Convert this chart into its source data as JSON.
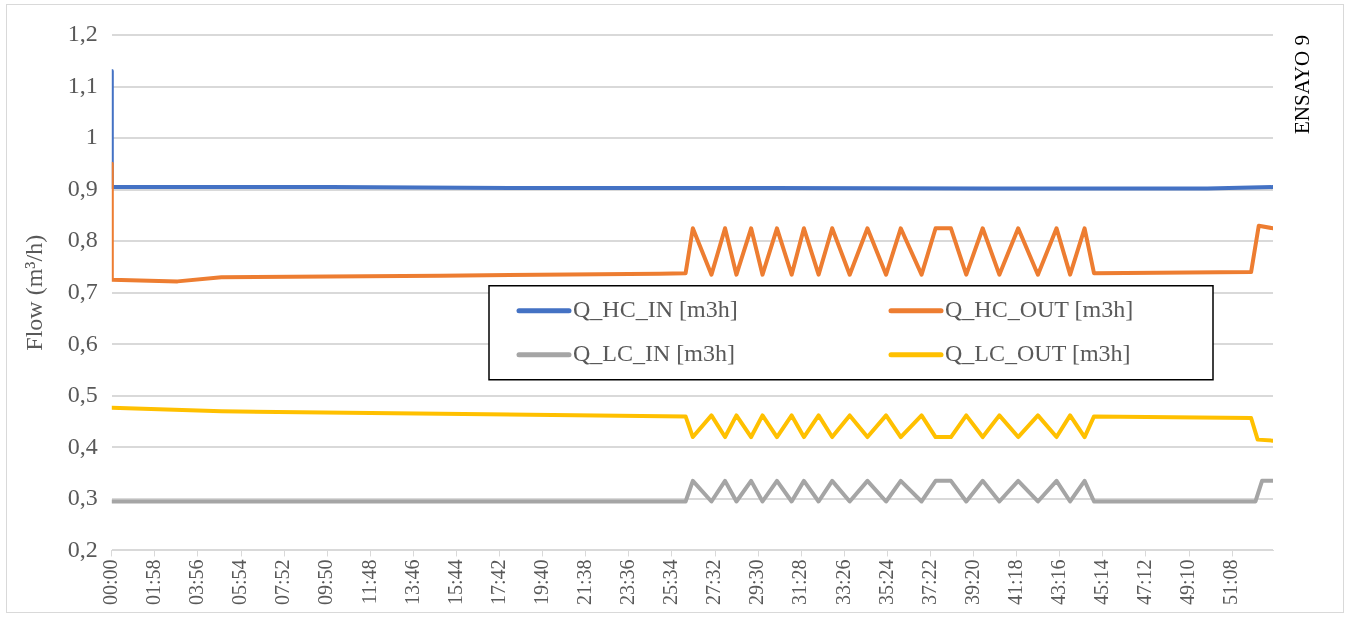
{
  "chart_data": {
    "type": "line",
    "ylabel": "Flow (m³/h)",
    "annotations": [
      "ENSAYO 9"
    ],
    "xlim": [
      0,
      53
    ],
    "xticks": [
      {
        "value": 0,
        "label": "00:00"
      },
      {
        "value": 1.9667,
        "label": "01:58"
      },
      {
        "value": 3.9333,
        "label": "03:56"
      },
      {
        "value": 5.9,
        "label": "05:54"
      },
      {
        "value": 7.8667,
        "label": "07:52"
      },
      {
        "value": 9.8333,
        "label": "09:50"
      },
      {
        "value": 11.8,
        "label": "11:48"
      },
      {
        "value": 13.7667,
        "label": "13:46"
      },
      {
        "value": 15.7333,
        "label": "15:44"
      },
      {
        "value": 17.7,
        "label": "17:42"
      },
      {
        "value": 19.6667,
        "label": "19:40"
      },
      {
        "value": 21.6333,
        "label": "21:38"
      },
      {
        "value": 23.6,
        "label": "23:36"
      },
      {
        "value": 25.5667,
        "label": "25:34"
      },
      {
        "value": 27.5333,
        "label": "27:32"
      },
      {
        "value": 29.5,
        "label": "29:30"
      },
      {
        "value": 31.4667,
        "label": "31:28"
      },
      {
        "value": 33.4333,
        "label": "33:26"
      },
      {
        "value": 35.4,
        "label": "35:24"
      },
      {
        "value": 37.3667,
        "label": "37:22"
      },
      {
        "value": 39.3333,
        "label": "39:20"
      },
      {
        "value": 41.3,
        "label": "41:18"
      },
      {
        "value": 43.2667,
        "label": "43:16"
      },
      {
        "value": 45.2333,
        "label": "45:14"
      },
      {
        "value": 47.2,
        "label": "47:12"
      },
      {
        "value": 49.1667,
        "label": "49:10"
      },
      {
        "value": 51.1333,
        "label": "51:08"
      }
    ],
    "ylim": [
      0.2,
      1.2
    ],
    "yticks": [
      {
        "value": 0.2,
        "label": "0,2"
      },
      {
        "value": 0.3,
        "label": "0,3"
      },
      {
        "value": 0.4,
        "label": "0,4"
      },
      {
        "value": 0.5,
        "label": "0,5"
      },
      {
        "value": 0.6,
        "label": "0,6"
      },
      {
        "value": 0.7,
        "label": "0,7"
      },
      {
        "value": 0.8,
        "label": "0,8"
      },
      {
        "value": 0.9,
        "label": "0,9"
      },
      {
        "value": 1,
        "label": "1"
      },
      {
        "value": 1.1,
        "label": "1,1"
      },
      {
        "value": 1.2,
        "label": "1,2"
      }
    ],
    "grid": "y",
    "legend": "right",
    "marker": "none",
    "line_style": "solid",
    "series": [
      {
        "name": "Q_HC_IN [m3h]",
        "color": "#4472c4",
        "x": [
          0,
          0,
          10,
          20,
          30,
          40,
          50,
          53
        ],
        "values": [
          1.13,
          0.905,
          0.905,
          0.903,
          0.903,
          0.902,
          0.902,
          0.905
        ]
      },
      {
        "name": "Q_HC_OUT [m3h]",
        "color": "#ed7d31",
        "x": [
          0,
          0,
          3,
          5,
          15,
          25,
          26.19,
          26.52,
          27.37,
          27.99,
          28.51,
          29.18,
          29.7,
          30.36,
          31.03,
          31.59,
          32.26,
          32.88,
          33.68,
          34.49,
          35.34,
          36.01,
          36.96,
          37.6,
          38.3,
          39,
          39.75,
          40.51,
          41.37,
          42.27,
          43.12,
          43.74,
          44.4,
          44.83,
          52,
          52.35,
          53
        ],
        "values": [
          0.95,
          0.725,
          0.722,
          0.73,
          0.733,
          0.737,
          0.738,
          0.825,
          0.735,
          0.825,
          0.735,
          0.825,
          0.735,
          0.825,
          0.735,
          0.825,
          0.735,
          0.825,
          0.735,
          0.825,
          0.735,
          0.825,
          0.735,
          0.825,
          0.825,
          0.735,
          0.825,
          0.735,
          0.825,
          0.735,
          0.825,
          0.735,
          0.825,
          0.738,
          0.74,
          0.83,
          0.825
        ]
      },
      {
        "name": "Q_LC_IN [m3h]",
        "color": "#a5a5a5",
        "x": [
          0,
          26.19,
          26.52,
          27.37,
          27.99,
          28.51,
          29.18,
          29.7,
          30.36,
          31.03,
          31.59,
          32.26,
          32.88,
          33.68,
          34.49,
          35.34,
          36.01,
          36.96,
          37.6,
          38.3,
          39,
          39.75,
          40.51,
          41.37,
          42.27,
          43.12,
          43.74,
          44.4,
          44.83,
          52.2,
          52.5,
          53
        ],
        "values": [
          0.295,
          0.295,
          0.335,
          0.295,
          0.335,
          0.295,
          0.335,
          0.295,
          0.335,
          0.295,
          0.335,
          0.295,
          0.335,
          0.295,
          0.335,
          0.295,
          0.335,
          0.295,
          0.335,
          0.335,
          0.295,
          0.335,
          0.295,
          0.335,
          0.295,
          0.335,
          0.295,
          0.335,
          0.295,
          0.295,
          0.335,
          0.335
        ]
      },
      {
        "name": "Q_LC_OUT [m3h]",
        "color": "#ffc000",
        "x": [
          0,
          5,
          15,
          26.19,
          26.52,
          27.37,
          27.99,
          28.51,
          29.18,
          29.7,
          30.36,
          31.03,
          31.59,
          32.26,
          32.88,
          33.68,
          34.49,
          35.34,
          36.01,
          36.96,
          37.6,
          38.3,
          39,
          39.75,
          40.51,
          41.37,
          42.27,
          43.12,
          43.74,
          44.4,
          44.83,
          52,
          52.3,
          53
        ],
        "values": [
          0.477,
          0.47,
          0.465,
          0.46,
          0.42,
          0.462,
          0.42,
          0.462,
          0.42,
          0.462,
          0.42,
          0.462,
          0.42,
          0.462,
          0.42,
          0.462,
          0.42,
          0.462,
          0.42,
          0.462,
          0.42,
          0.42,
          0.462,
          0.42,
          0.462,
          0.42,
          0.462,
          0.42,
          0.462,
          0.42,
          0.46,
          0.457,
          0.415,
          0.413
        ]
      }
    ]
  }
}
